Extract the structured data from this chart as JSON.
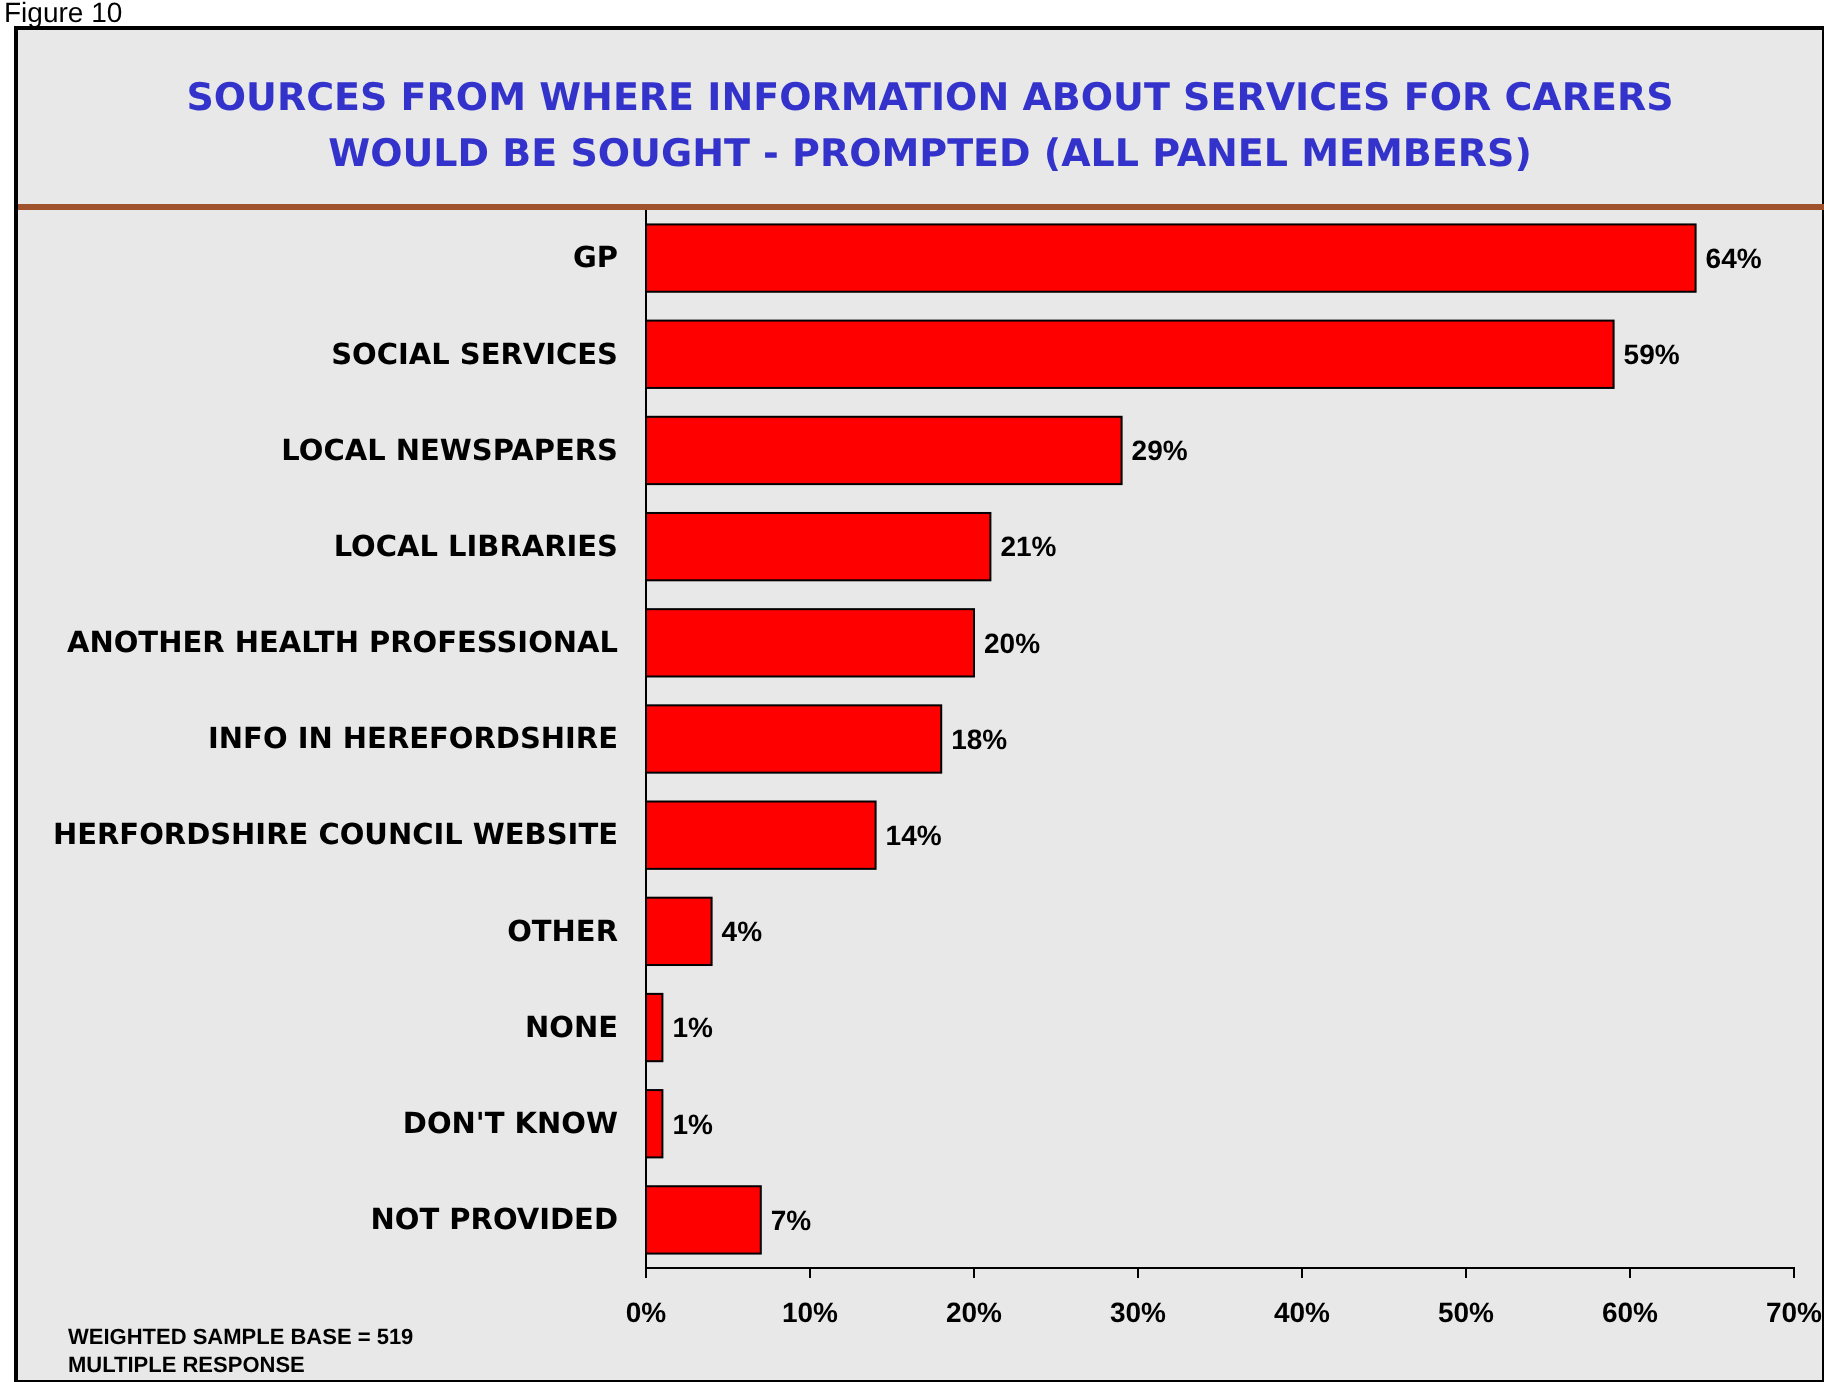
{
  "chart_data": {
    "type": "bar",
    "orientation": "horizontal",
    "title": "SOURCES FROM WHERE INFORMATION ABOUT SERVICES FOR CARERS WOULD BE SOUGHT - PROMPTED (ALL PANEL MEMBERS)",
    "categories": [
      "GP",
      "SOCIAL SERVICES",
      "LOCAL NEWSPAPERS",
      "LOCAL LIBRARIES",
      "ANOTHER HEALTH PROFESSIONAL",
      "INFO IN HEREFORDSHIRE",
      "HERFORDSHIRE COUNCIL WEBSITE",
      "OTHER",
      "NONE",
      "DON'T KNOW",
      "NOT PROVIDED"
    ],
    "values": [
      64,
      59,
      29,
      21,
      20,
      18,
      14,
      4,
      1,
      1,
      7
    ],
    "value_labels": [
      "64%",
      "59%",
      "29%",
      "21%",
      "20%",
      "18%",
      "14%",
      "4%",
      "1%",
      "1%",
      "7%"
    ],
    "color": "#ff0000",
    "xlim": [
      0,
      70
    ],
    "xticks": [
      {
        "value": 0,
        "label": "0%"
      },
      {
        "value": 10,
        "label": "10%"
      },
      {
        "value": 20,
        "label": "20%"
      },
      {
        "value": 30,
        "label": "30%"
      },
      {
        "value": 40,
        "label": "40%"
      },
      {
        "value": 50,
        "label": "50%"
      },
      {
        "value": 60,
        "label": "60%"
      },
      {
        "value": 70,
        "label": "70%"
      }
    ],
    "grid": false,
    "annotations": [
      "Figure 10",
      "WEIGHTED SAMPLE BASE = 519",
      "MULTIPLE RESPONSE"
    ]
  }
}
